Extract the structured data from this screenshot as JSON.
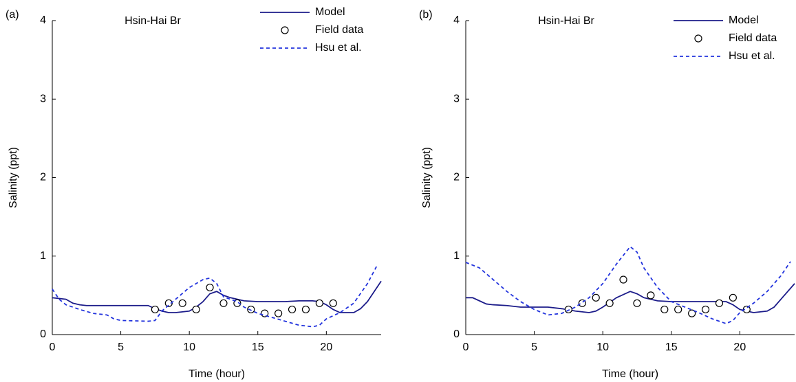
{
  "chart_data": [
    {
      "type": "line",
      "panel_label": "(a)",
      "title": "Hsin-Hai Br",
      "xlabel": "Time (hour)",
      "ylabel": "Salinity (ppt)",
      "xlim": [
        0,
        24
      ],
      "ylim": [
        0,
        4
      ],
      "xticks": [
        0,
        5,
        10,
        15,
        20
      ],
      "yticks": [
        0,
        1,
        2,
        3,
        4
      ],
      "legend": "upper right",
      "series": [
        {
          "name": "Model",
          "color": "#1c1c8a",
          "linestyle": "solid",
          "x": [
            0,
            1,
            1.5,
            2,
            2.5,
            3,
            7,
            7.5,
            8,
            8.5,
            9,
            10,
            10.5,
            11,
            11.5,
            12,
            12.5,
            13,
            14,
            15,
            16,
            17,
            18,
            19,
            19.5,
            20,
            20.5,
            21,
            22,
            22.5,
            23,
            23.5,
            24
          ],
          "values": [
            0.47,
            0.45,
            0.4,
            0.38,
            0.37,
            0.37,
            0.37,
            0.33,
            0.3,
            0.28,
            0.28,
            0.3,
            0.35,
            0.42,
            0.52,
            0.55,
            0.5,
            0.47,
            0.43,
            0.42,
            0.42,
            0.42,
            0.43,
            0.43,
            0.42,
            0.38,
            0.32,
            0.28,
            0.28,
            0.33,
            0.42,
            0.55,
            0.68
          ]
        },
        {
          "name": "Field data",
          "color": "#000000",
          "marker": "circle",
          "x": [
            7.5,
            8.5,
            9.5,
            10.5,
            11.5,
            12.5,
            13.5,
            14.5,
            15.5,
            16.5,
            17.5,
            18.5,
            19.5,
            20.5
          ],
          "values": [
            0.32,
            0.4,
            0.4,
            0.32,
            0.6,
            0.4,
            0.4,
            0.32,
            0.27,
            0.27,
            0.32,
            0.32,
            0.4,
            0.4
          ]
        },
        {
          "name": "Hsu et al.",
          "color": "#2233dd",
          "linestyle": "dashed",
          "x": [
            0,
            0.5,
            1,
            2,
            3,
            4,
            4.5,
            5,
            7,
            7.5,
            8,
            9,
            10,
            11,
            11.5,
            12,
            12.5,
            13.5,
            14,
            15,
            16,
            17,
            18,
            19,
            19.5,
            20,
            21,
            22,
            23,
            23.7
          ],
          "values": [
            0.58,
            0.45,
            0.38,
            0.32,
            0.27,
            0.25,
            0.2,
            0.18,
            0.17,
            0.18,
            0.3,
            0.45,
            0.6,
            0.7,
            0.72,
            0.65,
            0.48,
            0.42,
            0.35,
            0.27,
            0.22,
            0.17,
            0.12,
            0.1,
            0.12,
            0.2,
            0.28,
            0.4,
            0.65,
            0.88
          ]
        }
      ]
    },
    {
      "type": "line",
      "panel_label": "(b)",
      "title": "Hsin-Hai Br",
      "xlabel": "Time (hour)",
      "ylabel": "Salinity (ppt)",
      "xlim": [
        0,
        24
      ],
      "ylim": [
        0,
        4
      ],
      "xticks": [
        0,
        5,
        10,
        15,
        20
      ],
      "yticks": [
        0,
        1,
        2,
        3,
        4
      ],
      "legend": "upper right",
      "series": [
        {
          "name": "Model",
          "color": "#1c1c8a",
          "linestyle": "solid",
          "x": [
            0,
            0.5,
            1,
            1.5,
            2,
            3,
            4,
            6,
            7,
            8,
            9,
            9.5,
            10,
            11,
            12,
            12.5,
            13,
            14,
            15,
            19,
            19.5,
            20,
            21,
            22,
            22.5,
            23,
            24
          ],
          "values": [
            0.47,
            0.47,
            0.43,
            0.39,
            0.38,
            0.37,
            0.35,
            0.35,
            0.33,
            0.3,
            0.28,
            0.3,
            0.35,
            0.47,
            0.55,
            0.52,
            0.47,
            0.43,
            0.42,
            0.42,
            0.38,
            0.32,
            0.28,
            0.3,
            0.35,
            0.45,
            0.65
          ]
        },
        {
          "name": "Field data",
          "color": "#000000",
          "marker": "circle",
          "x": [
            7.5,
            8.5,
            9.5,
            10.5,
            11.5,
            12.5,
            13.5,
            14.5,
            15.5,
            16.5,
            17.5,
            18.5,
            19.5,
            20.5
          ],
          "values": [
            0.32,
            0.4,
            0.47,
            0.4,
            0.7,
            0.4,
            0.5,
            0.32,
            0.32,
            0.27,
            0.32,
            0.4,
            0.47,
            0.32
          ]
        },
        {
          "name": "Hsu et al.",
          "color": "#2233dd",
          "linestyle": "dashed",
          "x": [
            0,
            1,
            2,
            3,
            4,
            5,
            6,
            7,
            8,
            9,
            10,
            11,
            12,
            12.5,
            13,
            14,
            15,
            16,
            17,
            18,
            19,
            19.5,
            20,
            21,
            22,
            23,
            23.7
          ],
          "values": [
            0.92,
            0.85,
            0.7,
            0.55,
            0.42,
            0.32,
            0.25,
            0.27,
            0.35,
            0.47,
            0.65,
            0.9,
            1.12,
            1.05,
            0.85,
            0.6,
            0.42,
            0.35,
            0.28,
            0.2,
            0.14,
            0.18,
            0.28,
            0.4,
            0.55,
            0.75,
            0.93
          ]
        }
      ]
    }
  ]
}
